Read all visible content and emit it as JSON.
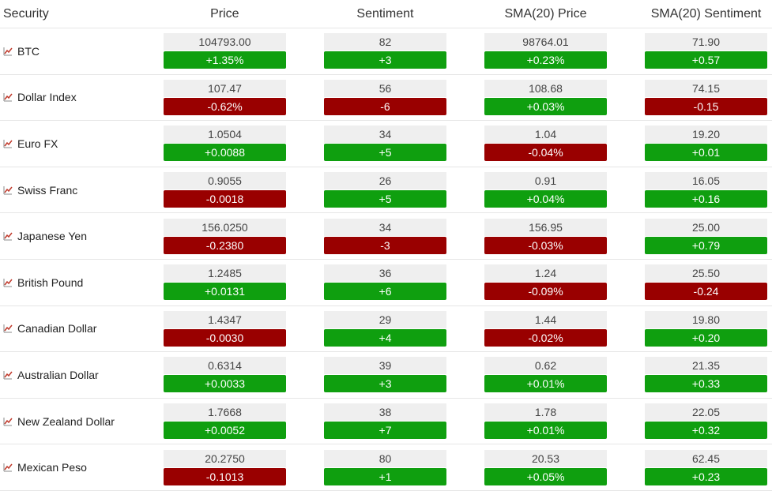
{
  "headers": {
    "security": "Security",
    "price": "Price",
    "sentiment": "Sentiment",
    "sma_price": "SMA(20) Price",
    "sma_sentiment": "SMA(20) Sentiment"
  },
  "colors": {
    "up": "#0f9f0f",
    "down": "#990000",
    "icon": "#c0392b"
  },
  "rows": [
    {
      "name": "BTC",
      "price": "104793.00",
      "price_chg": "+1.35%",
      "price_dir": "up",
      "sent": "82",
      "sent_chg": "+3",
      "sent_dir": "up",
      "sma_p": "98764.01",
      "sma_p_chg": "+0.23%",
      "sma_p_dir": "up",
      "sma_s": "71.90",
      "sma_s_chg": "+0.57",
      "sma_s_dir": "up"
    },
    {
      "name": "Dollar Index",
      "price": "107.47",
      "price_chg": "-0.62%",
      "price_dir": "down",
      "sent": "56",
      "sent_chg": "-6",
      "sent_dir": "down",
      "sma_p": "108.68",
      "sma_p_chg": "+0.03%",
      "sma_p_dir": "up",
      "sma_s": "74.15",
      "sma_s_chg": "-0.15",
      "sma_s_dir": "down"
    },
    {
      "name": "Euro FX",
      "price": "1.0504",
      "price_chg": "+0.0088",
      "price_dir": "up",
      "sent": "34",
      "sent_chg": "+5",
      "sent_dir": "up",
      "sma_p": "1.04",
      "sma_p_chg": "-0.04%",
      "sma_p_dir": "down",
      "sma_s": "19.20",
      "sma_s_chg": "+0.01",
      "sma_s_dir": "up"
    },
    {
      "name": "Swiss Franc",
      "price": "0.9055",
      "price_chg": "-0.0018",
      "price_dir": "down",
      "sent": "26",
      "sent_chg": "+5",
      "sent_dir": "up",
      "sma_p": "0.91",
      "sma_p_chg": "+0.04%",
      "sma_p_dir": "up",
      "sma_s": "16.05",
      "sma_s_chg": "+0.16",
      "sma_s_dir": "up"
    },
    {
      "name": "Japanese Yen",
      "price": "156.0250",
      "price_chg": "-0.2380",
      "price_dir": "down",
      "sent": "34",
      "sent_chg": "-3",
      "sent_dir": "down",
      "sma_p": "156.95",
      "sma_p_chg": "-0.03%",
      "sma_p_dir": "down",
      "sma_s": "25.00",
      "sma_s_chg": "+0.79",
      "sma_s_dir": "up"
    },
    {
      "name": "British Pound",
      "price": "1.2485",
      "price_chg": "+0.0131",
      "price_dir": "up",
      "sent": "36",
      "sent_chg": "+6",
      "sent_dir": "up",
      "sma_p": "1.24",
      "sma_p_chg": "-0.09%",
      "sma_p_dir": "down",
      "sma_s": "25.50",
      "sma_s_chg": "-0.24",
      "sma_s_dir": "down"
    },
    {
      "name": "Canadian Dollar",
      "price": "1.4347",
      "price_chg": "-0.0030",
      "price_dir": "down",
      "sent": "29",
      "sent_chg": "+4",
      "sent_dir": "up",
      "sma_p": "1.44",
      "sma_p_chg": "-0.02%",
      "sma_p_dir": "down",
      "sma_s": "19.80",
      "sma_s_chg": "+0.20",
      "sma_s_dir": "up"
    },
    {
      "name": "Australian Dollar",
      "price": "0.6314",
      "price_chg": "+0.0033",
      "price_dir": "up",
      "sent": "39",
      "sent_chg": "+3",
      "sent_dir": "up",
      "sma_p": "0.62",
      "sma_p_chg": "+0.01%",
      "sma_p_dir": "up",
      "sma_s": "21.35",
      "sma_s_chg": "+0.33",
      "sma_s_dir": "up"
    },
    {
      "name": "New Zealand Dollar",
      "price": "1.7668",
      "price_chg": "+0.0052",
      "price_dir": "up",
      "sent": "38",
      "sent_chg": "+7",
      "sent_dir": "up",
      "sma_p": "1.78",
      "sma_p_chg": "+0.01%",
      "sma_p_dir": "up",
      "sma_s": "22.05",
      "sma_s_chg": "+0.32",
      "sma_s_dir": "up"
    },
    {
      "name": "Mexican Peso",
      "price": "20.2750",
      "price_chg": "-0.1013",
      "price_dir": "down",
      "sent": "80",
      "sent_chg": "+1",
      "sent_dir": "up",
      "sma_p": "20.53",
      "sma_p_chg": "+0.05%",
      "sma_p_dir": "up",
      "sma_s": "62.45",
      "sma_s_chg": "+0.23",
      "sma_s_dir": "up"
    }
  ]
}
